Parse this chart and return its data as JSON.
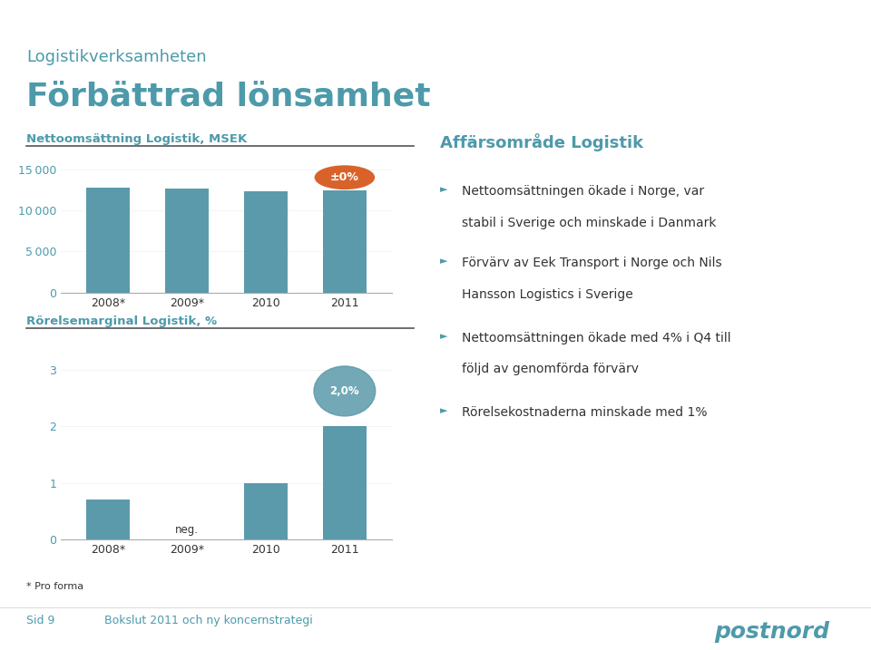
{
  "title_small": "Logistikverksamheten",
  "title_large": "Förbättrad lönsamhet",
  "chart1_label": "Nettoomsättning Logistik, MSEK",
  "chart1_categories": [
    "2008*",
    "2009*",
    "2010",
    "2011"
  ],
  "chart1_values": [
    12800,
    12650,
    12350,
    12400
  ],
  "chart1_ylim": [
    0,
    17000
  ],
  "chart1_yticks": [
    0,
    5000,
    10000,
    15000
  ],
  "chart1_annotation": "±0%",
  "chart2_label": "Rörelsemarginal Logistik, %",
  "chart2_categories": [
    "2008*",
    "2009*",
    "2010",
    "2011"
  ],
  "chart2_values": [
    0.7,
    0,
    1.0,
    2.0
  ],
  "chart2_neg_label": "neg.",
  "chart2_ylim": [
    0,
    3.5
  ],
  "chart2_yticks": [
    0,
    1,
    2,
    3
  ],
  "chart2_annotation": "2,0%",
  "bar_color": "#5b9aaa",
  "annotation1_bg": "#d9622b",
  "annotation2_bg": "#5b9aaa",
  "annotation_text_color": "#ffffff",
  "right_title": "Affärsområde Logistik",
  "bullet1_line1": "Nettoomsättningen ökade i Norge, var",
  "bullet1_line2": "stabil i Sverige och minskade i Danmark",
  "bullet2_line1": "Förvärv av Eek Transport i Norge och Nils",
  "bullet2_line2": "Hansson Logistics i Sverige",
  "bullet3_line1": "Nettoomsättningen ökade med 4% i Q4 till",
  "bullet3_line2": "följd av genomförda förvärv",
  "bullet4_line1": "Rörelsekostnaderna minskade med 1%",
  "bullet4_line2": "",
  "footer_left": "* Pro forma",
  "footer_sid": "Sid 9",
  "footer_center": "Bokslut 2011 och ny koncernstrategi",
  "footer_color": "#4d9aaa",
  "bg_color": "#ffffff",
  "title_color": "#4d9aaa",
  "tick_color": "#4d9aaa",
  "rule_color": "#555555",
  "text_color": "#333333"
}
